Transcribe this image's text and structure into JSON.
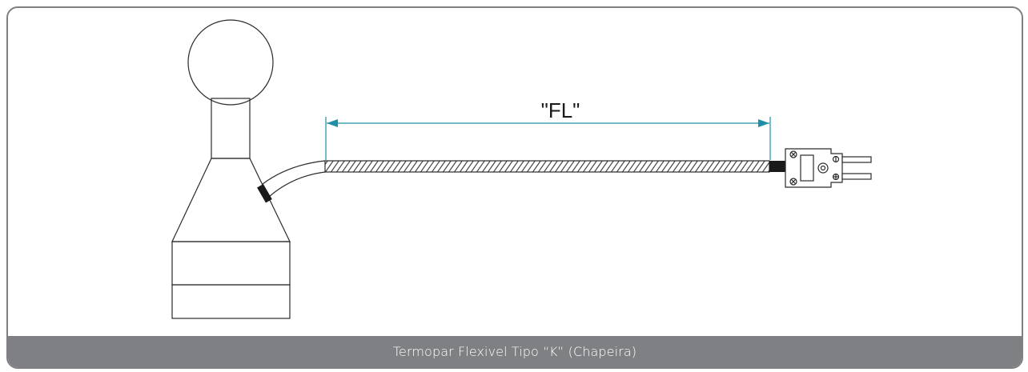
{
  "dimension_label": "\"FL\"",
  "caption": "Termopar Flexivel Tipo “K” (Chapeira)",
  "colors": {
    "frame": "#7f8083",
    "caption_bg": "#7f8083",
    "caption_text": "#ffffff",
    "dimension_line": "#1f8fa8",
    "outline": "#2a2a2a"
  },
  "icons": [
    "globe-probe-icon",
    "connector-plug-icon"
  ]
}
